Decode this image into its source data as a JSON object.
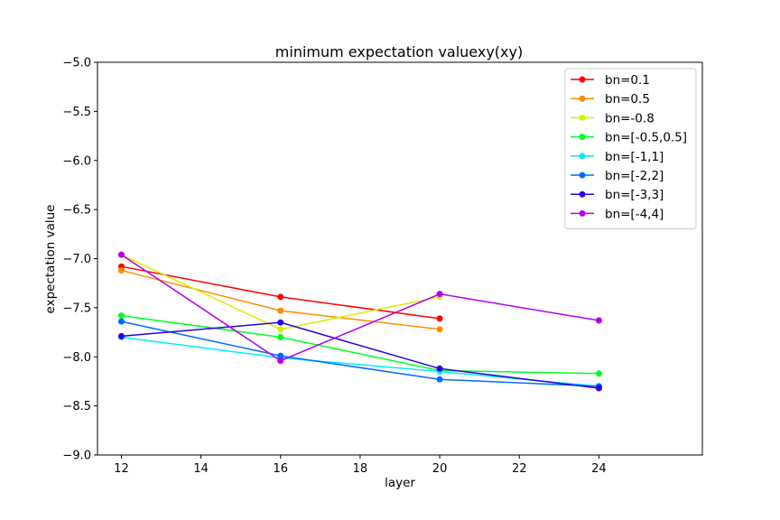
{
  "chart_data": {
    "type": "line",
    "title": "minimum expectation valuexy(xy)",
    "xlabel": "layer",
    "ylabel": "expectation value",
    "xlim": [
      11.4,
      26.6
    ],
    "ylim": [
      -9.0,
      -5.0
    ],
    "xticks": [
      "12",
      "14",
      "16",
      "18",
      "20",
      "22",
      "24"
    ],
    "yticks": [
      "−9.0",
      "−8.5",
      "−8.0",
      "−7.5",
      "−7.0",
      "−6.5",
      "−6.0",
      "−5.5",
      "−5.0"
    ],
    "legend_position": "upper right",
    "grid": false,
    "series": [
      {
        "name": "bn=0.1",
        "color": "#ff0000",
        "x": [
          12,
          16,
          20
        ],
        "y": [
          -7.08,
          -7.39,
          -7.61
        ]
      },
      {
        "name": "bn=0.5",
        "color": "#ff8c00",
        "x": [
          12,
          16,
          20
        ],
        "y": [
          -7.12,
          -7.53,
          -7.72
        ]
      },
      {
        "name": "bn=-0.8",
        "color": "#d4f000",
        "x": [
          12,
          16,
          20
        ],
        "y": [
          -6.96,
          -7.72,
          -7.39
        ]
      },
      {
        "name": "bn=[-0.5,0.5]",
        "color": "#00ff22",
        "x": [
          12,
          16,
          20,
          24
        ],
        "y": [
          -7.58,
          -7.8,
          -8.14,
          -8.17
        ]
      },
      {
        "name": "bn=[-1,1]",
        "color": "#00eaff",
        "x": [
          12,
          16,
          20,
          24
        ],
        "y": [
          -7.8,
          -8.01,
          -8.15,
          -8.3
        ]
      },
      {
        "name": "bn=[-2,2]",
        "color": "#006cff",
        "x": [
          12,
          16,
          20,
          24
        ],
        "y": [
          -7.64,
          -7.99,
          -8.23,
          -8.3
        ]
      },
      {
        "name": "bn=[-3,3]",
        "color": "#2a00e0",
        "x": [
          12,
          16,
          20,
          24
        ],
        "y": [
          -7.79,
          -7.65,
          -8.12,
          -8.32
        ]
      },
      {
        "name": "bn=[-4,4]",
        "color": "#b400f0",
        "x": [
          12,
          16,
          20,
          24
        ],
        "y": [
          -6.96,
          -8.04,
          -7.36,
          -7.63
        ]
      }
    ]
  }
}
